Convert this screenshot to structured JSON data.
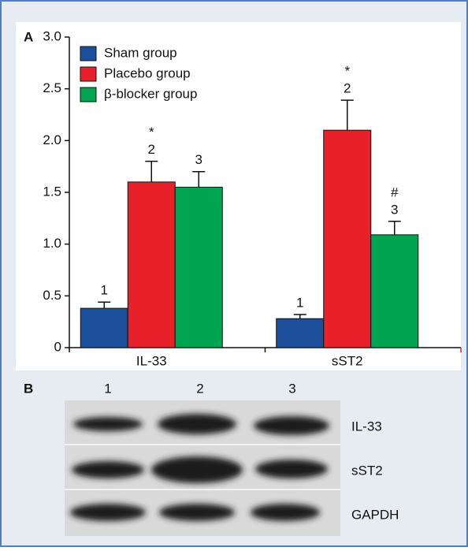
{
  "chart_data": {
    "type": "bar",
    "panel_label": "A",
    "categories": [
      "IL-33",
      "sST2"
    ],
    "series": [
      {
        "name": "Sham group",
        "color": "#1b4f9b",
        "values": [
          0.38,
          0.28
        ],
        "errors": [
          0.06,
          0.04
        ],
        "labels": [
          "1",
          "1"
        ],
        "markers": [
          null,
          null
        ]
      },
      {
        "name": "Placebo group",
        "color": "#e8202a",
        "values": [
          1.6,
          2.1
        ],
        "errors": [
          0.2,
          0.29
        ],
        "labels": [
          "2",
          "2"
        ],
        "markers": [
          "*",
          "*"
        ]
      },
      {
        "name": "β-blocker group",
        "color": "#00a551",
        "values": [
          1.55,
          1.09
        ],
        "errors": [
          0.15,
          0.13
        ],
        "labels": [
          "3",
          "3"
        ],
        "markers": [
          null,
          "#"
        ]
      }
    ],
    "ylim": [
      0,
      3
    ],
    "yticks": [
      0,
      0.5,
      {
        "value": 1,
        "label": "1.0"
      },
      1.5,
      {
        "value": 2,
        "label": "2.0"
      },
      2.5,
      {
        "value": 3,
        "label": "3.0"
      }
    ],
    "legend": "upper left"
  },
  "blot": {
    "panel_label": "B",
    "lanes": [
      "1",
      "2",
      "3"
    ],
    "rows": [
      "IL-33",
      "sST2",
      "GAPDH"
    ]
  }
}
